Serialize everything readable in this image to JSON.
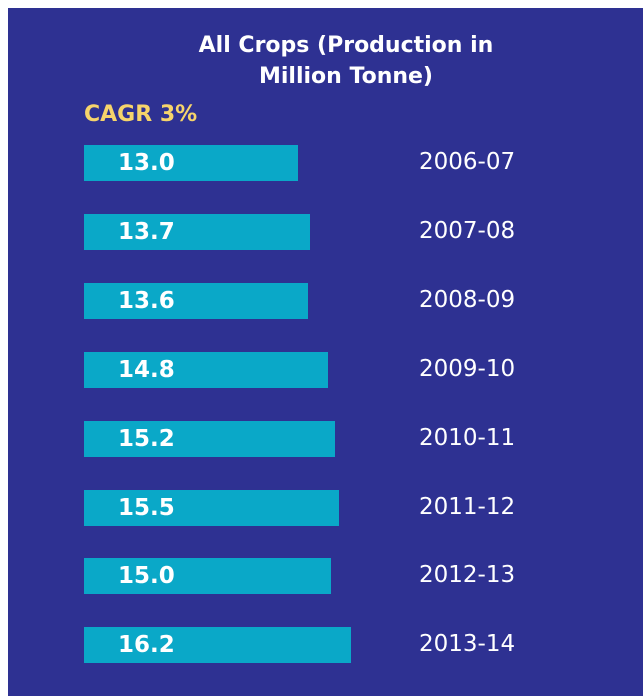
{
  "chart_data": {
    "type": "barh",
    "title": "All Crops (Production in Million Tonne)",
    "annotation": "CAGR 3%",
    "categories": [
      "2006-07",
      "2007-08",
      "2008-09",
      "2009-10",
      "2010-11",
      "2011-12",
      "2012-13",
      "2013-14"
    ],
    "values": [
      13.0,
      13.7,
      13.6,
      14.8,
      15.2,
      15.5,
      15.0,
      16.2
    ],
    "value_labels": [
      "13.0",
      "13.7",
      "13.6",
      "14.8",
      "15.2",
      "15.5",
      "15.0",
      "16.2"
    ],
    "color": "#0aa8c8"
  }
}
